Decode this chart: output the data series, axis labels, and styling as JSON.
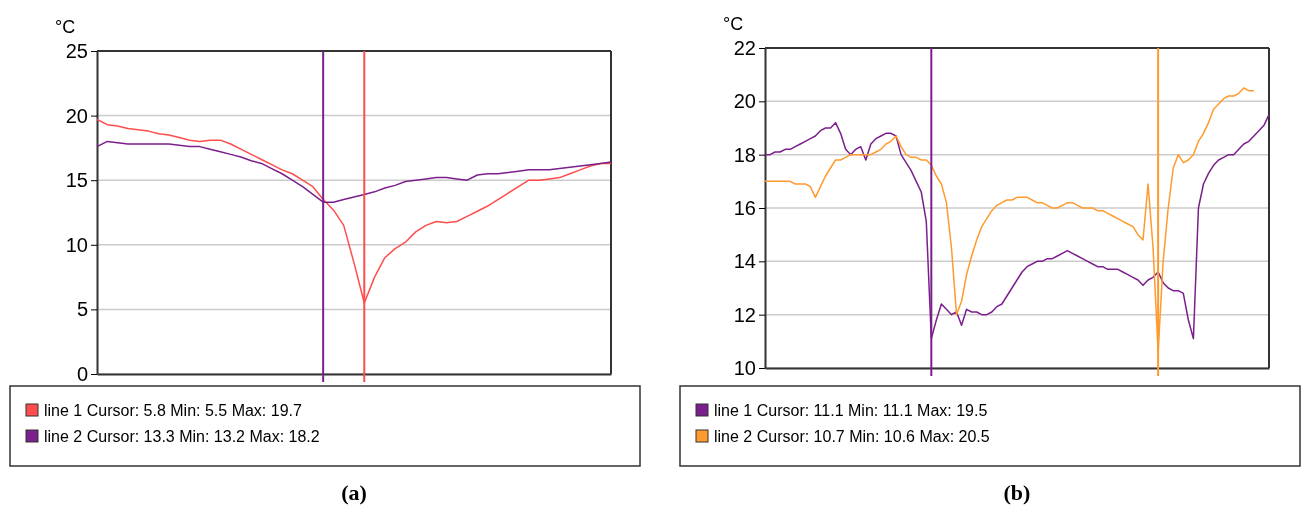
{
  "chart_data": [
    {
      "type": "line",
      "title": "(a)",
      "ylabel": "°C",
      "categories": [
        null,
        null,
        null,
        null,
        null,
        null,
        null,
        null,
        null,
        null,
        null,
        null,
        null,
        null,
        null,
        null,
        null,
        null,
        null,
        null,
        null,
        null,
        null,
        null,
        null,
        null,
        null,
        null,
        null,
        null,
        null,
        null,
        null,
        null,
        null,
        null,
        null,
        null,
        null,
        null,
        null,
        null,
        null,
        null,
        null,
        null,
        null,
        null,
        null,
        null,
        null
      ],
      "ylim": [
        0,
        25
      ],
      "yticks": [
        0,
        5,
        10,
        15,
        20,
        25
      ],
      "grid": "y",
      "legend": "bottom",
      "series": [
        {
          "name": "line 1 Cursor: 5.8 Min: 5.5 Max: 19.7",
          "color": "#ff4d4d",
          "values": [
            19.7,
            19.3,
            19.2,
            19.0,
            18.9,
            18.8,
            18.6,
            18.5,
            18.3,
            18.1,
            18.0,
            18.1,
            18.1,
            17.8,
            17.4,
            17.0,
            16.6,
            16.2,
            15.8,
            15.5,
            15.0,
            14.5,
            13.5,
            12.7,
            11.5,
            8.6,
            5.5,
            7.5,
            9.0,
            9.7,
            10.2,
            11.0,
            11.5,
            11.8,
            11.7,
            11.8,
            12.2,
            12.6,
            13.0,
            13.5,
            14.0,
            14.5,
            15.0,
            15.0,
            15.1,
            15.2,
            15.5,
            15.8,
            16.1,
            16.3,
            16.3
          ]
        },
        {
          "name": "line 2 Cursor: 13.3 Min: 13.2 Max: 18.2",
          "color": "#7b1f8c",
          "values": [
            17.6,
            18.0,
            17.9,
            17.8,
            17.8,
            17.8,
            17.8,
            17.8,
            17.7,
            17.6,
            17.6,
            17.4,
            17.2,
            17.0,
            16.8,
            16.5,
            16.3,
            15.9,
            15.5,
            15.0,
            14.5,
            13.9,
            13.3,
            13.3,
            13.5,
            13.7,
            13.9,
            14.1,
            14.4,
            14.6,
            14.9,
            15.0,
            15.1,
            15.2,
            15.2,
            15.1,
            15.0,
            15.4,
            15.5,
            15.5,
            15.6,
            15.7,
            15.8,
            15.8,
            15.8,
            15.9,
            16.0,
            16.1,
            16.2,
            16.3,
            16.4
          ]
        }
      ]
    },
    {
      "type": "line",
      "title": "(b)",
      "ylabel": "°C",
      "categories": [
        null,
        null,
        null,
        null,
        null,
        null,
        null,
        null,
        null,
        null,
        null,
        null,
        null,
        null,
        null,
        null,
        null,
        null,
        null,
        null,
        null,
        null,
        null,
        null,
        null,
        null,
        null,
        null,
        null,
        null,
        null,
        null,
        null,
        null,
        null,
        null,
        null,
        null,
        null,
        null,
        null,
        null,
        null,
        null,
        null,
        null,
        null,
        null,
        null,
        null,
        null,
        null,
        null,
        null,
        null,
        null,
        null,
        null,
        null,
        null,
        null,
        null,
        null,
        null,
        null,
        null,
        null,
        null,
        null,
        null,
        null,
        null,
        null,
        null,
        null,
        null,
        null,
        null,
        null,
        null,
        null,
        null,
        null,
        null,
        null,
        null,
        null,
        null,
        null,
        null,
        null,
        null,
        null,
        null,
        null,
        null,
        null,
        null,
        null,
        null,
        null
      ],
      "ylim": [
        10,
        22
      ],
      "yticks": [
        10,
        12,
        14,
        16,
        18,
        20,
        22
      ],
      "grid": "y",
      "legend": "bottom",
      "series": [
        {
          "name": "line 1 Cursor: 11.1 Min: 11.1 Max: 19.5",
          "color": "#7b1f8c",
          "values": [
            18.0,
            18.0,
            18.1,
            18.1,
            18.2,
            18.2,
            18.3,
            18.4,
            18.5,
            18.6,
            18.7,
            18.9,
            19.0,
            19.0,
            19.2,
            18.8,
            18.2,
            18.0,
            18.2,
            18.3,
            17.8,
            18.4,
            18.6,
            18.7,
            18.8,
            18.8,
            18.7,
            18.0,
            17.7,
            17.4,
            17.0,
            16.6,
            15.5,
            11.1,
            11.8,
            12.4,
            12.2,
            12.0,
            12.1,
            11.6,
            12.2,
            12.1,
            12.1,
            12.0,
            12.0,
            12.1,
            12.3,
            12.4,
            12.7,
            13.0,
            13.3,
            13.6,
            13.8,
            13.9,
            14.0,
            14.0,
            14.1,
            14.1,
            14.2,
            14.3,
            14.4,
            14.3,
            14.2,
            14.1,
            14.0,
            13.9,
            13.8,
            13.8,
            13.7,
            13.7,
            13.7,
            13.6,
            13.5,
            13.4,
            13.3,
            13.1,
            13.3,
            13.4,
            13.6,
            13.2,
            13.0,
            12.9,
            12.9,
            12.8,
            11.8,
            11.1,
            16.0,
            16.9,
            17.3,
            17.6,
            17.8,
            17.9,
            18.0,
            18.0,
            18.2,
            18.4,
            18.5,
            18.7,
            18.9,
            19.1,
            19.5
          ]
        },
        {
          "name": "line 2 Cursor: 10.7 Min: 10.6 Max: 20.5",
          "color": "#ff9a2e",
          "values": [
            17.0,
            17.0,
            17.0,
            17.0,
            17.0,
            17.0,
            16.9,
            16.9,
            16.9,
            16.8,
            16.4,
            16.8,
            17.2,
            17.5,
            17.8,
            17.8,
            17.9,
            18.0,
            18.0,
            18.0,
            18.0,
            18.0,
            18.1,
            18.2,
            18.4,
            18.5,
            18.7,
            18.3,
            18.0,
            17.9,
            17.9,
            17.8,
            17.8,
            17.6,
            17.2,
            16.9,
            16.2,
            14.5,
            12.0,
            12.5,
            13.5,
            14.2,
            14.8,
            15.3,
            15.6,
            15.9,
            16.1,
            16.2,
            16.3,
            16.3,
            16.4,
            16.4,
            16.4,
            16.3,
            16.2,
            16.2,
            16.1,
            16.0,
            16.0,
            16.1,
            16.2,
            16.2,
            16.1,
            16.0,
            16.0,
            16.0,
            15.9,
            15.9,
            15.8,
            15.7,
            15.6,
            15.5,
            15.4,
            15.3,
            15.0,
            14.8,
            16.9,
            14.5,
            10.6,
            14.0,
            16.0,
            17.5,
            18.0,
            17.7,
            17.8,
            18.0,
            18.5,
            18.8,
            19.2,
            19.7,
            19.9,
            20.1,
            20.2,
            20.2,
            20.3,
            20.5,
            20.4,
            20.4,
            null,
            null,
            null
          ]
        }
      ]
    }
  ]
}
